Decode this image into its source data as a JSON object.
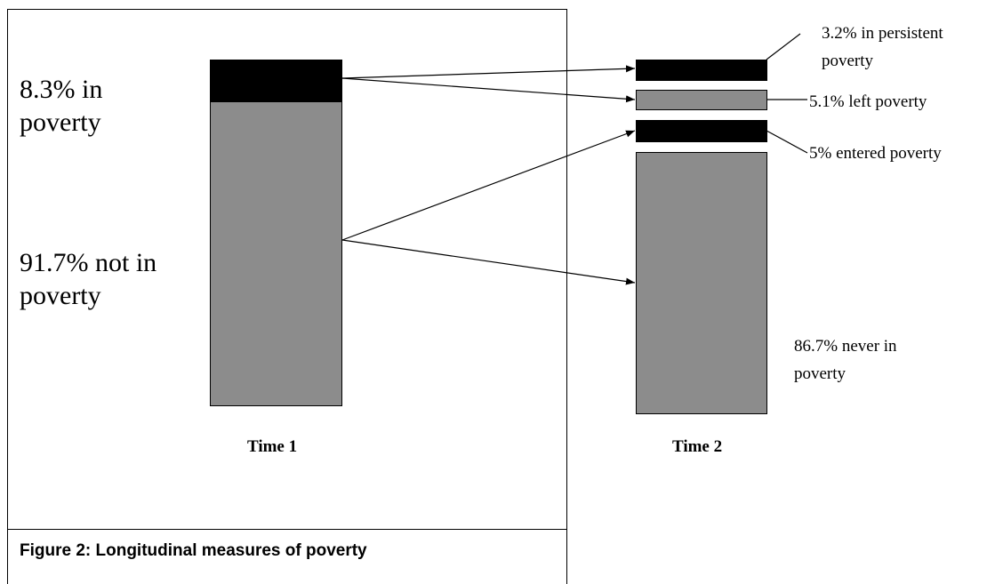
{
  "caption": "Figure 2: Longitudinal measures of poverty",
  "time1": {
    "label": "Time 1",
    "segments": [
      "8.3% in poverty",
      "91.7% not in poverty"
    ]
  },
  "time2": {
    "label": "Time 2",
    "segments": [
      "3.2% in persistent poverty",
      "5.1% left poverty",
      "5% entered poverty",
      "86.7% never in poverty"
    ]
  }
}
